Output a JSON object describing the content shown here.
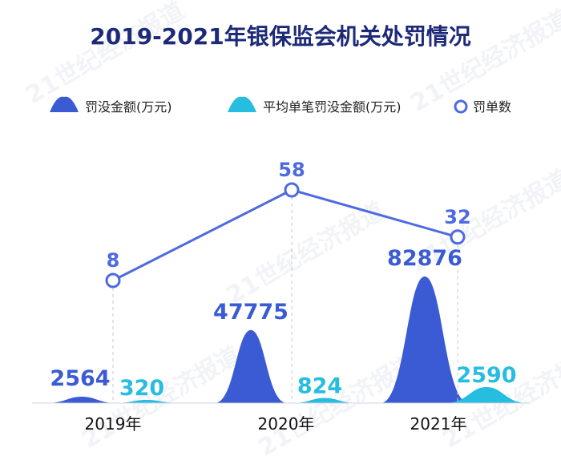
{
  "chart_data": {
    "type": "area+line",
    "title": "2019-2021年银保监会机关处罚情况",
    "categories": [
      "2019年",
      "2020年",
      "2021年"
    ],
    "series": [
      {
        "name": "罚没金额(万元)",
        "kind": "area",
        "color": "#3a5bd4",
        "values": [
          2564,
          47775,
          82876
        ]
      },
      {
        "name": "平均单笔罚没金额(万元)",
        "kind": "area",
        "color": "#27bde0",
        "values": [
          320,
          824,
          2590
        ]
      },
      {
        "name": "罚单数",
        "kind": "line",
        "color": "#4e6ae0",
        "values": [
          8,
          58,
          32
        ]
      }
    ],
    "watermark": "21世纪经济报道"
  }
}
